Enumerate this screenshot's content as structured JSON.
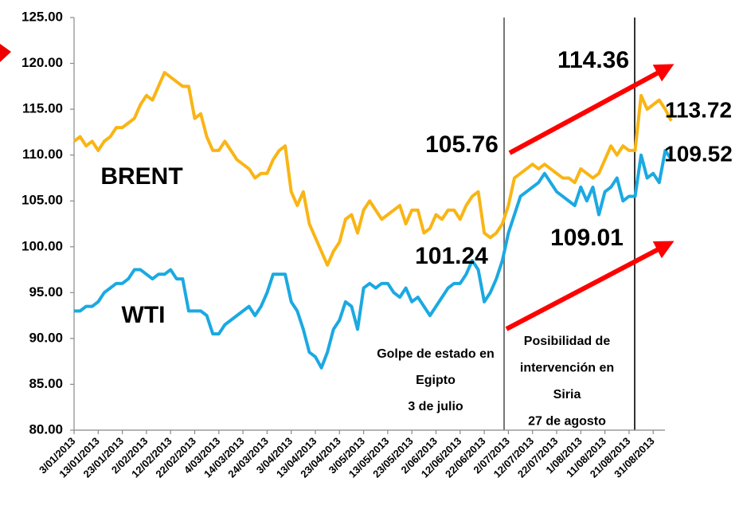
{
  "chart_data": {
    "type": "line",
    "categories": [
      "3/01/2013",
      null,
      null,
      null,
      "13/01/2013",
      null,
      null,
      null,
      "23/01/2013",
      null,
      null,
      null,
      "2/02/2013",
      null,
      null,
      null,
      "12/02/2013",
      null,
      null,
      null,
      "22/02/2013",
      null,
      null,
      null,
      "4/03/2013",
      null,
      null,
      null,
      "14/03/2013",
      null,
      null,
      null,
      "24/03/2013",
      null,
      null,
      null,
      "3/04/2013",
      null,
      null,
      null,
      "13/04/2013",
      null,
      null,
      null,
      "23/04/2013",
      null,
      null,
      null,
      "3/05/2013",
      null,
      null,
      null,
      "13/05/2013",
      null,
      null,
      null,
      "23/05/2013",
      null,
      null,
      null,
      "2/06/2013",
      null,
      null,
      null,
      "12/06/2013",
      null,
      null,
      null,
      "22/06/2013",
      null,
      null,
      null,
      "2/07/2013",
      null,
      null,
      null,
      "12/07/2013",
      null,
      null,
      null,
      "22/07/2013",
      null,
      null,
      null,
      "1/08/2013",
      null,
      null,
      null,
      "11/08/2013",
      null,
      null,
      null,
      "21/08/2013",
      null,
      null,
      null,
      "31/08/2013",
      null,
      null,
      null
    ],
    "series": [
      {
        "name": "BRENT",
        "color": "#f9b515",
        "values": [
          111.5,
          112,
          111,
          111.5,
          110.5,
          111.5,
          112,
          113,
          113,
          113.5,
          114,
          115.5,
          116.5,
          116,
          117.5,
          119,
          118.5,
          118,
          117.5,
          117.5,
          114,
          114.5,
          112,
          110.5,
          110.5,
          111.5,
          110.5,
          109.5,
          109,
          108.5,
          107.5,
          108,
          108,
          109.5,
          110.5,
          111,
          106,
          104.5,
          106,
          102.5,
          101,
          99.5,
          98,
          99.5,
          100.5,
          103,
          103.5,
          101.5,
          104,
          105,
          104,
          103,
          103.5,
          104,
          104.5,
          102.5,
          104,
          104,
          101.5,
          102,
          103.5,
          103,
          104,
          104,
          103,
          104.5,
          105.5,
          106,
          101.5,
          101,
          101.5,
          102.5,
          104.5,
          107.5,
          108,
          108.5,
          109,
          108.5,
          109,
          108.5,
          108,
          107.5,
          107.5,
          107,
          108.5,
          108,
          107.5,
          108,
          109.5,
          111,
          110,
          111,
          110.5,
          110.5,
          116.5,
          115,
          115.5,
          116,
          115,
          113.72
        ]
      },
      {
        "name": "WTI",
        "color": "#1ba9e1",
        "values": [
          93,
          93,
          93.5,
          93.5,
          94,
          95,
          95.5,
          96,
          96,
          96.5,
          97.5,
          97.5,
          97,
          96.5,
          97,
          97,
          97.5,
          96.5,
          96.5,
          93,
          93,
          93,
          92.5,
          90.5,
          90.5,
          91.5,
          92,
          92.5,
          93,
          93.5,
          92.5,
          93.5,
          95,
          97,
          97,
          97,
          94,
          93,
          91,
          88.5,
          88,
          86.8,
          88.5,
          91,
          92,
          94,
          93.5,
          91,
          95.5,
          96,
          95.5,
          96,
          96,
          95,
          94.5,
          95.5,
          94,
          94.5,
          93.5,
          92.5,
          93.5,
          94.5,
          95.5,
          96,
          96,
          97,
          98.5,
          97.5,
          94,
          95,
          96.5,
          98.5,
          101.5,
          103.5,
          105.5,
          106,
          106.5,
          107,
          108,
          107,
          106,
          105.5,
          105,
          104.5,
          106.5,
          105,
          106.5,
          103.5,
          106,
          106.5,
          107.5,
          105,
          105.5,
          105.5,
          110,
          107.5,
          108,
          107,
          110.5,
          109.52
        ]
      }
    ],
    "ylim": [
      80,
      125
    ],
    "yticks": [
      {
        "value": 80,
        "label": "80.00"
      },
      {
        "value": 85,
        "label": "85.00"
      },
      {
        "value": 90,
        "label": "90.00"
      },
      {
        "value": 95,
        "label": "95.00"
      },
      {
        "value": 100,
        "label": "100.00"
      },
      {
        "value": 105,
        "label": "105.00"
      },
      {
        "value": 110,
        "label": "110.00"
      },
      {
        "value": 115,
        "label": "115.00"
      },
      {
        "value": 120,
        "label": "120.00"
      },
      {
        "value": 125,
        "label": "125.00"
      }
    ],
    "grid": false,
    "annotations": [
      "BRENT",
      "WTI",
      "105.76",
      "101.24",
      "114.36",
      "109.01",
      "113.72",
      "109.52"
    ],
    "notes": [
      [
        "Golpe de estado en",
        "Egipto",
        "3 de julio"
      ],
      [
        "Posibilidad de",
        "intervención en",
        "Siria",
        "27 de agosto"
      ]
    ]
  }
}
